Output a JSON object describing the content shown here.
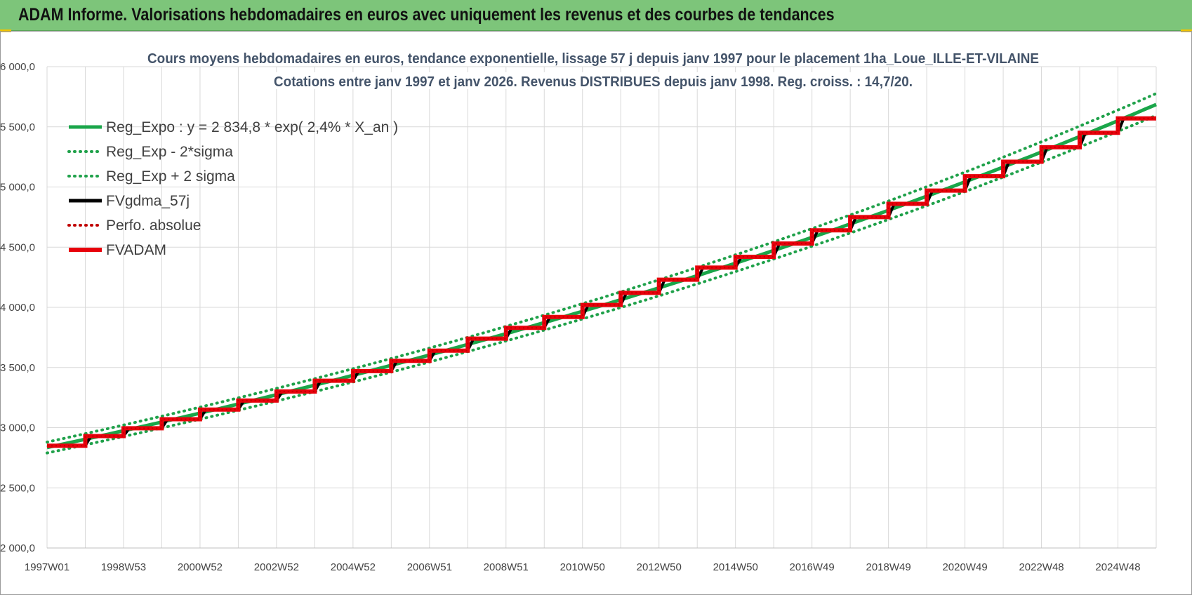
{
  "banner": {
    "title": "ADAM Informe. Valorisations hebdomadaires en euros avec uniquement les revenus et des courbes de tendances"
  },
  "colors": {
    "banner_bg": "#7dc57a",
    "reg_green": "#1aa64a",
    "dotted_green": "#1fa14a",
    "fv_black": "#000000",
    "fvadam_red": "#e8000b",
    "perfo_red": "#c00000",
    "grid": "#d9d9d9"
  },
  "chart_data": {
    "type": "line",
    "title_line1": "Cours moyens hebdomadaires en euros, tendance exponentielle, lissage 57 j depuis janv 1997 pour le placement 1ha_Loue_ILLE-ET-VILAINE",
    "title_line2": "Cotations entre janv 1997 et janv 2026. Revenus DISTRIBUES depuis janv 1998. Reg. croiss. : 14,7/20.",
    "x_tick_labels": [
      "1997W01",
      "1998W53",
      "2000W52",
      "2002W52",
      "2004W52",
      "2006W51",
      "2008W51",
      "2010W50",
      "2012W50",
      "2014W50",
      "2016W49",
      "2018W49",
      "2020W49",
      "2022W48",
      "2024W48"
    ],
    "y_tick_labels": [
      "2 000,0",
      "2 500,0",
      "3 000,0",
      "3 500,0",
      "4 000,0",
      "4 500,0",
      "5 000,0",
      "5 500,0",
      "6 000,0"
    ],
    "ylim": [
      2000,
      6000
    ],
    "xlim_years": [
      1997,
      2026
    ],
    "grid": true,
    "legend_position": "top-left",
    "legend": [
      {
        "label": "Reg_Expo : y = 2 834,8 * exp( 2,4% *  X_an )",
        "style": "solid",
        "color": "#1aa64a"
      },
      {
        "label": "Reg_Exp - 2*sigma",
        "style": "dotted",
        "color": "#1fa14a"
      },
      {
        "label": "Reg_Exp + 2 sigma",
        "style": "dotted",
        "color": "#1fa14a"
      },
      {
        "label": "FVgdma_57j",
        "style": "solid",
        "color": "#000000"
      },
      {
        "label": "Perfo. absolue",
        "style": "dotted",
        "color": "#c00000"
      },
      {
        "label": "FVADAM",
        "style": "solid",
        "color": "#e8000b"
      }
    ],
    "regression": {
      "a": 2834.8,
      "rate": 0.024,
      "sigma_factor": 0.016
    },
    "fvadam_annual_levels": [
      {
        "year": 1997,
        "value": 2850
      },
      {
        "year": 1998,
        "value": 2930
      },
      {
        "year": 1999,
        "value": 2995
      },
      {
        "year": 2000,
        "value": 3070
      },
      {
        "year": 2001,
        "value": 3150
      },
      {
        "year": 2002,
        "value": 3225
      },
      {
        "year": 2003,
        "value": 3300
      },
      {
        "year": 2004,
        "value": 3390
      },
      {
        "year": 2005,
        "value": 3470
      },
      {
        "year": 2006,
        "value": 3555
      },
      {
        "year": 2007,
        "value": 3640
      },
      {
        "year": 2008,
        "value": 3740
      },
      {
        "year": 2009,
        "value": 3830
      },
      {
        "year": 2010,
        "value": 3920
      },
      {
        "year": 2011,
        "value": 4020
      },
      {
        "year": 2012,
        "value": 4120
      },
      {
        "year": 2013,
        "value": 4230
      },
      {
        "year": 2014,
        "value": 4330
      },
      {
        "year": 2015,
        "value": 4420
      },
      {
        "year": 2016,
        "value": 4530
      },
      {
        "year": 2017,
        "value": 4640
      },
      {
        "year": 2018,
        "value": 4750
      },
      {
        "year": 2019,
        "value": 4860
      },
      {
        "year": 2020,
        "value": 4970
      },
      {
        "year": 2021,
        "value": 5090
      },
      {
        "year": 2022,
        "value": 5210
      },
      {
        "year": 2023,
        "value": 5330
      },
      {
        "year": 2024,
        "value": 5450
      },
      {
        "year": 2025,
        "value": 5570
      }
    ]
  }
}
